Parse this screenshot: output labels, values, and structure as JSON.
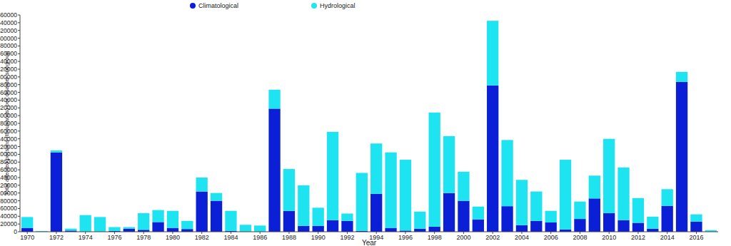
{
  "chart_data": {
    "type": "bar",
    "stacked": true,
    "x_label": "Year",
    "y_label": "Total affected persons (thousands) per disaster subgroup",
    "categories": [
      "1970",
      null,
      "1972",
      null,
      "1974",
      null,
      "1976",
      null,
      "1978",
      null,
      "1980",
      null,
      "1982",
      null,
      "1984",
      null,
      "1986",
      null,
      "1988",
      null,
      "1990",
      null,
      "1992",
      null,
      "1994",
      null,
      "1996",
      null,
      "1998",
      null,
      "2000",
      null,
      "2002",
      null,
      "2004",
      null,
      "2006",
      null,
      "2008",
      null,
      "2010",
      null,
      "2012",
      null,
      "2014",
      null,
      "2016",
      null
    ],
    "series": [
      {
        "name": "Climatological",
        "color": "#0a1fd6",
        "values": [
          10000,
          500,
          205000,
          3000,
          0,
          0,
          2000,
          8000,
          5000,
          25000,
          10000,
          7000,
          104000,
          80000,
          2000,
          0,
          0,
          318000,
          54000,
          15000,
          15000,
          30000,
          28000,
          2000,
          98000,
          10000,
          3000,
          8000,
          13000,
          100000,
          80000,
          32000,
          378000,
          66000,
          17000,
          28000,
          24000,
          6000,
          33000,
          86000,
          48000,
          30000,
          23000,
          8000,
          67000,
          387000,
          26000,
          0
        ]
      },
      {
        "name": "Hydrological",
        "color": "#1ee4f2",
        "values": [
          28000,
          1500,
          5000,
          5000,
          43000,
          38000,
          10000,
          4000,
          43000,
          31000,
          44000,
          21000,
          36000,
          20000,
          52000,
          18000,
          16000,
          49000,
          108000,
          105000,
          47000,
          228000,
          19000,
          150000,
          130000,
          195000,
          183000,
          44000,
          295000,
          147000,
          75000,
          33000,
          167000,
          171000,
          117000,
          76000,
          30000,
          180000,
          45000,
          59000,
          192000,
          136000,
          64000,
          31000,
          43000,
          26000,
          19000,
          4000
        ]
      }
    ],
    "ylim": [
      0,
      560000
    ],
    "yticks": [
      0,
      20000,
      40000,
      60000,
      80000,
      100000,
      120000,
      140000,
      160000,
      180000,
      200000,
      220000,
      240000,
      260000,
      280000,
      300000,
      320000,
      340000,
      360000,
      380000,
      400000,
      420000,
      440000,
      460000,
      480000,
      500000,
      520000,
      540000,
      560000
    ],
    "grid": false,
    "legend": "top"
  }
}
